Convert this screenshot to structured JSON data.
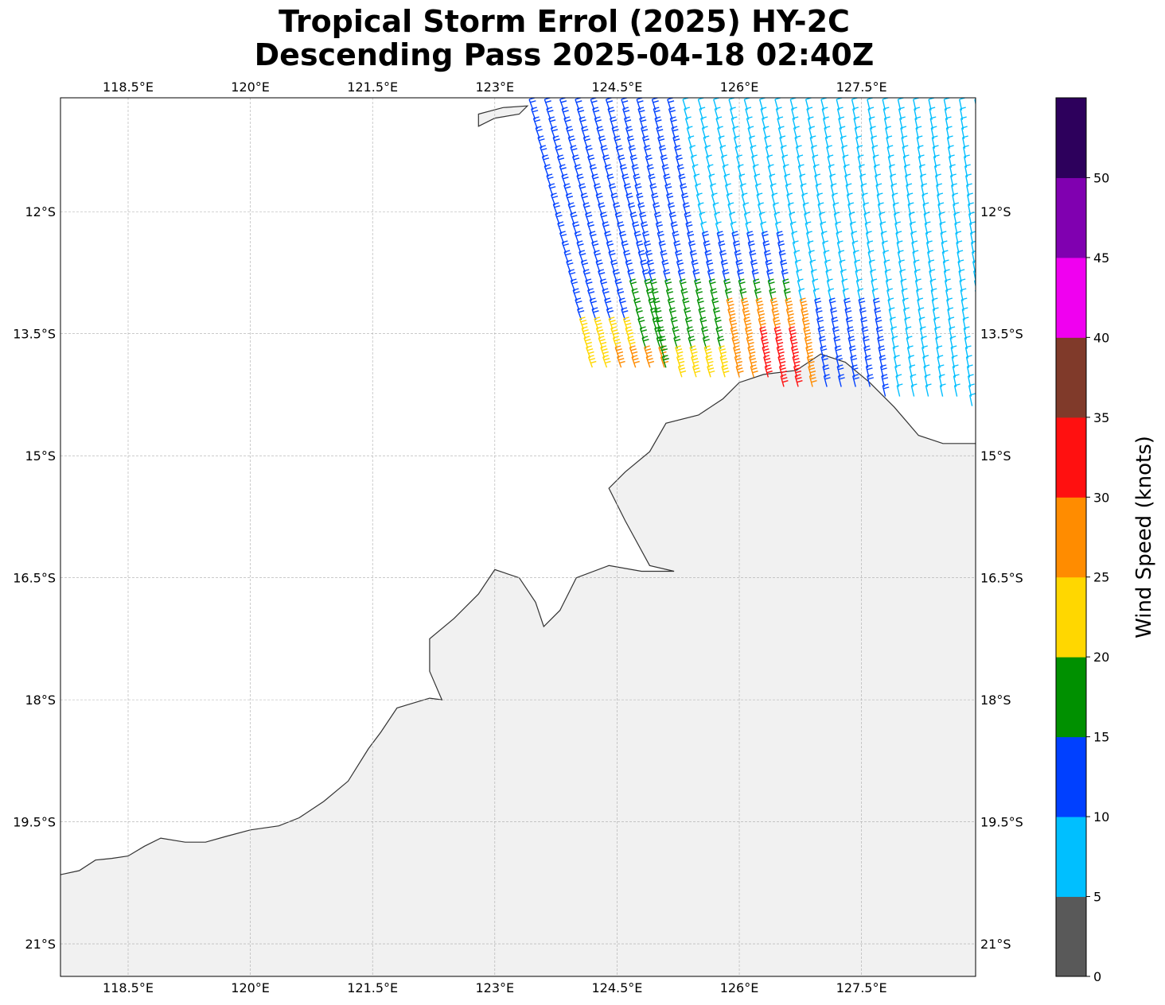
{
  "title_line1": "Tropical Storm Errol (2025) HY-2C",
  "title_line2": "Descending Pass 2025-04-18 02:40Z",
  "map": {
    "lon_range": [
      117.67,
      128.9
    ],
    "lat_range": [
      -21.4,
      -10.6
    ],
    "lon_ticks": [
      {
        "value": 118.5,
        "label": "118.5°E"
      },
      {
        "value": 120.0,
        "label": "120°E"
      },
      {
        "value": 121.5,
        "label": "121.5°E"
      },
      {
        "value": 123.0,
        "label": "123°E"
      },
      {
        "value": 124.5,
        "label": "124.5°E"
      },
      {
        "value": 126.0,
        "label": "126°E"
      },
      {
        "value": 127.5,
        "label": "127.5°E"
      }
    ],
    "lat_ticks": [
      {
        "value": -12.0,
        "label": "12°S"
      },
      {
        "value": -13.5,
        "label": "13.5°S"
      },
      {
        "value": -15.0,
        "label": "15°S"
      },
      {
        "value": -16.5,
        "label": "16.5°S"
      },
      {
        "value": -18.0,
        "label": "18°S"
      },
      {
        "value": -19.5,
        "label": "19.5°S"
      },
      {
        "value": -21.0,
        "label": "21°S"
      }
    ],
    "gridlines": true,
    "land_color": "#f1f1f1",
    "coast_color": "#333333",
    "coastline": [
      [
        117.67,
        -20.15
      ],
      [
        117.9,
        -20.1
      ],
      [
        118.1,
        -19.97
      ],
      [
        118.3,
        -19.95
      ],
      [
        118.5,
        -19.92
      ],
      [
        118.7,
        -19.8
      ],
      [
        118.9,
        -19.7
      ],
      [
        119.2,
        -19.75
      ],
      [
        119.45,
        -19.75
      ],
      [
        119.7,
        -19.68
      ],
      [
        120.0,
        -19.6
      ],
      [
        120.35,
        -19.55
      ],
      [
        120.6,
        -19.45
      ],
      [
        120.9,
        -19.25
      ],
      [
        121.2,
        -19.0
      ],
      [
        121.45,
        -18.6
      ],
      [
        121.6,
        -18.4
      ],
      [
        121.8,
        -18.1
      ],
      [
        122.2,
        -17.98
      ],
      [
        122.35,
        -18.0
      ],
      [
        122.2,
        -17.65
      ],
      [
        122.2,
        -17.25
      ],
      [
        122.5,
        -17.0
      ],
      [
        122.8,
        -16.7
      ],
      [
        123.0,
        -16.4
      ],
      [
        123.3,
        -16.5
      ],
      [
        123.5,
        -16.8
      ],
      [
        123.6,
        -17.1
      ],
      [
        123.8,
        -16.9
      ],
      [
        123.9,
        -16.7
      ],
      [
        124.0,
        -16.5
      ],
      [
        124.4,
        -16.35
      ],
      [
        124.8,
        -16.42
      ],
      [
        125.2,
        -16.42
      ],
      [
        124.9,
        -16.35
      ],
      [
        124.6,
        -15.8
      ],
      [
        124.4,
        -15.4
      ],
      [
        124.6,
        -15.2
      ],
      [
        124.9,
        -14.95
      ],
      [
        125.1,
        -14.6
      ],
      [
        125.5,
        -14.5
      ],
      [
        125.8,
        -14.3
      ],
      [
        126.0,
        -14.1
      ],
      [
        126.3,
        -14.0
      ],
      [
        126.7,
        -13.95
      ],
      [
        127.0,
        -13.75
      ],
      [
        127.3,
        -13.85
      ],
      [
        127.6,
        -14.1
      ],
      [
        127.9,
        -14.4
      ],
      [
        128.2,
        -14.75
      ],
      [
        128.5,
        -14.85
      ],
      [
        128.9,
        -14.85
      ],
      [
        128.9,
        -21.4
      ],
      [
        117.67,
        -21.4
      ]
    ],
    "islands": [
      [
        [
          122.8,
          -10.95
        ],
        [
          123.0,
          -10.85
        ],
        [
          123.3,
          -10.8
        ],
        [
          123.4,
          -10.7
        ],
        [
          123.1,
          -10.72
        ],
        [
          122.8,
          -10.8
        ]
      ]
    ]
  },
  "colorbar": {
    "label": "Wind Speed (knots)",
    "ticks": [
      "0",
      "5",
      "10",
      "15",
      "20",
      "25",
      "30",
      "35",
      "40",
      "45",
      "50"
    ],
    "colors": [
      "#595959",
      "#00bfff",
      "#0040ff",
      "#009000",
      "#ffd700",
      "#ff8c00",
      "#ff1010",
      "#803a2a",
      "#f000f0",
      "#8000b0",
      "#2d005c"
    ]
  }
}
